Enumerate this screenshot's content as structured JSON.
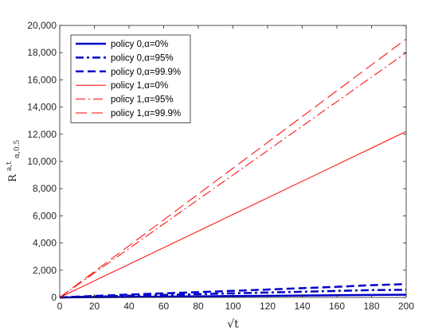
{
  "chart_data": {
    "type": "line",
    "title": "",
    "xlabel": "√t",
    "ylabel": {
      "base": "R",
      "sup": "a,t",
      "sub": "α,0.5"
    },
    "xlim": [
      0,
      200
    ],
    "ylim": [
      0,
      20000
    ],
    "x_ticks": [
      0,
      20,
      40,
      60,
      80,
      100,
      120,
      140,
      160,
      180,
      200
    ],
    "x_tick_labels": [
      "0",
      "20",
      "40",
      "60",
      "80",
      "100",
      "120",
      "140",
      "160",
      "180",
      "200"
    ],
    "y_ticks": [
      0,
      2000,
      4000,
      6000,
      8000,
      10000,
      12000,
      14000,
      16000,
      18000,
      20000
    ],
    "y_tick_labels": [
      "0",
      "2,000",
      "4,000",
      "6,000",
      "8,000",
      "10,000",
      "12,000",
      "14,000",
      "16,000",
      "18,000",
      "20,000"
    ],
    "grid": false,
    "legend_position": "top-left",
    "x": [
      0,
      20,
      40,
      60,
      80,
      100,
      120,
      140,
      160,
      180,
      200
    ],
    "series": [
      {
        "name": "policy 0,α=0%",
        "color": "#0000cc",
        "style": "solid",
        "weight": "thick",
        "values": [
          0,
          20,
          40,
          60,
          80,
          100,
          120,
          140,
          160,
          180,
          200
        ]
      },
      {
        "name": "policy 0,α=95%",
        "color": "#0000cc",
        "style": "dashdot",
        "weight": "thick",
        "values": [
          0,
          60,
          120,
          180,
          240,
          300,
          360,
          420,
          480,
          540,
          560
        ]
      },
      {
        "name": "policy 0,α=99.9%",
        "color": "#0000cc",
        "style": "dashed",
        "weight": "thick",
        "values": [
          0,
          110,
          210,
          300,
          390,
          480,
          580,
          680,
          780,
          900,
          980
        ]
      },
      {
        "name": "policy 1,α=0%",
        "color": "#ff0000",
        "style": "solid",
        "weight": "thin",
        "values": [
          0,
          1220,
          2440,
          3660,
          4880,
          6100,
          7320,
          8540,
          9760,
          10980,
          12200
        ]
      },
      {
        "name": "policy 1,α=95%",
        "color": "#ff0000",
        "style": "dashdot",
        "weight": "thin",
        "values": [
          0,
          1800,
          3600,
          5400,
          7200,
          9000,
          10800,
          12600,
          14400,
          16200,
          18000
        ]
      },
      {
        "name": "policy 1,α=99.9%",
        "color": "#ff0000",
        "style": "dashed",
        "weight": "thin",
        "values": [
          0,
          1900,
          3800,
          5700,
          7600,
          9500,
          11400,
          13300,
          15200,
          17100,
          19000
        ]
      }
    ]
  }
}
